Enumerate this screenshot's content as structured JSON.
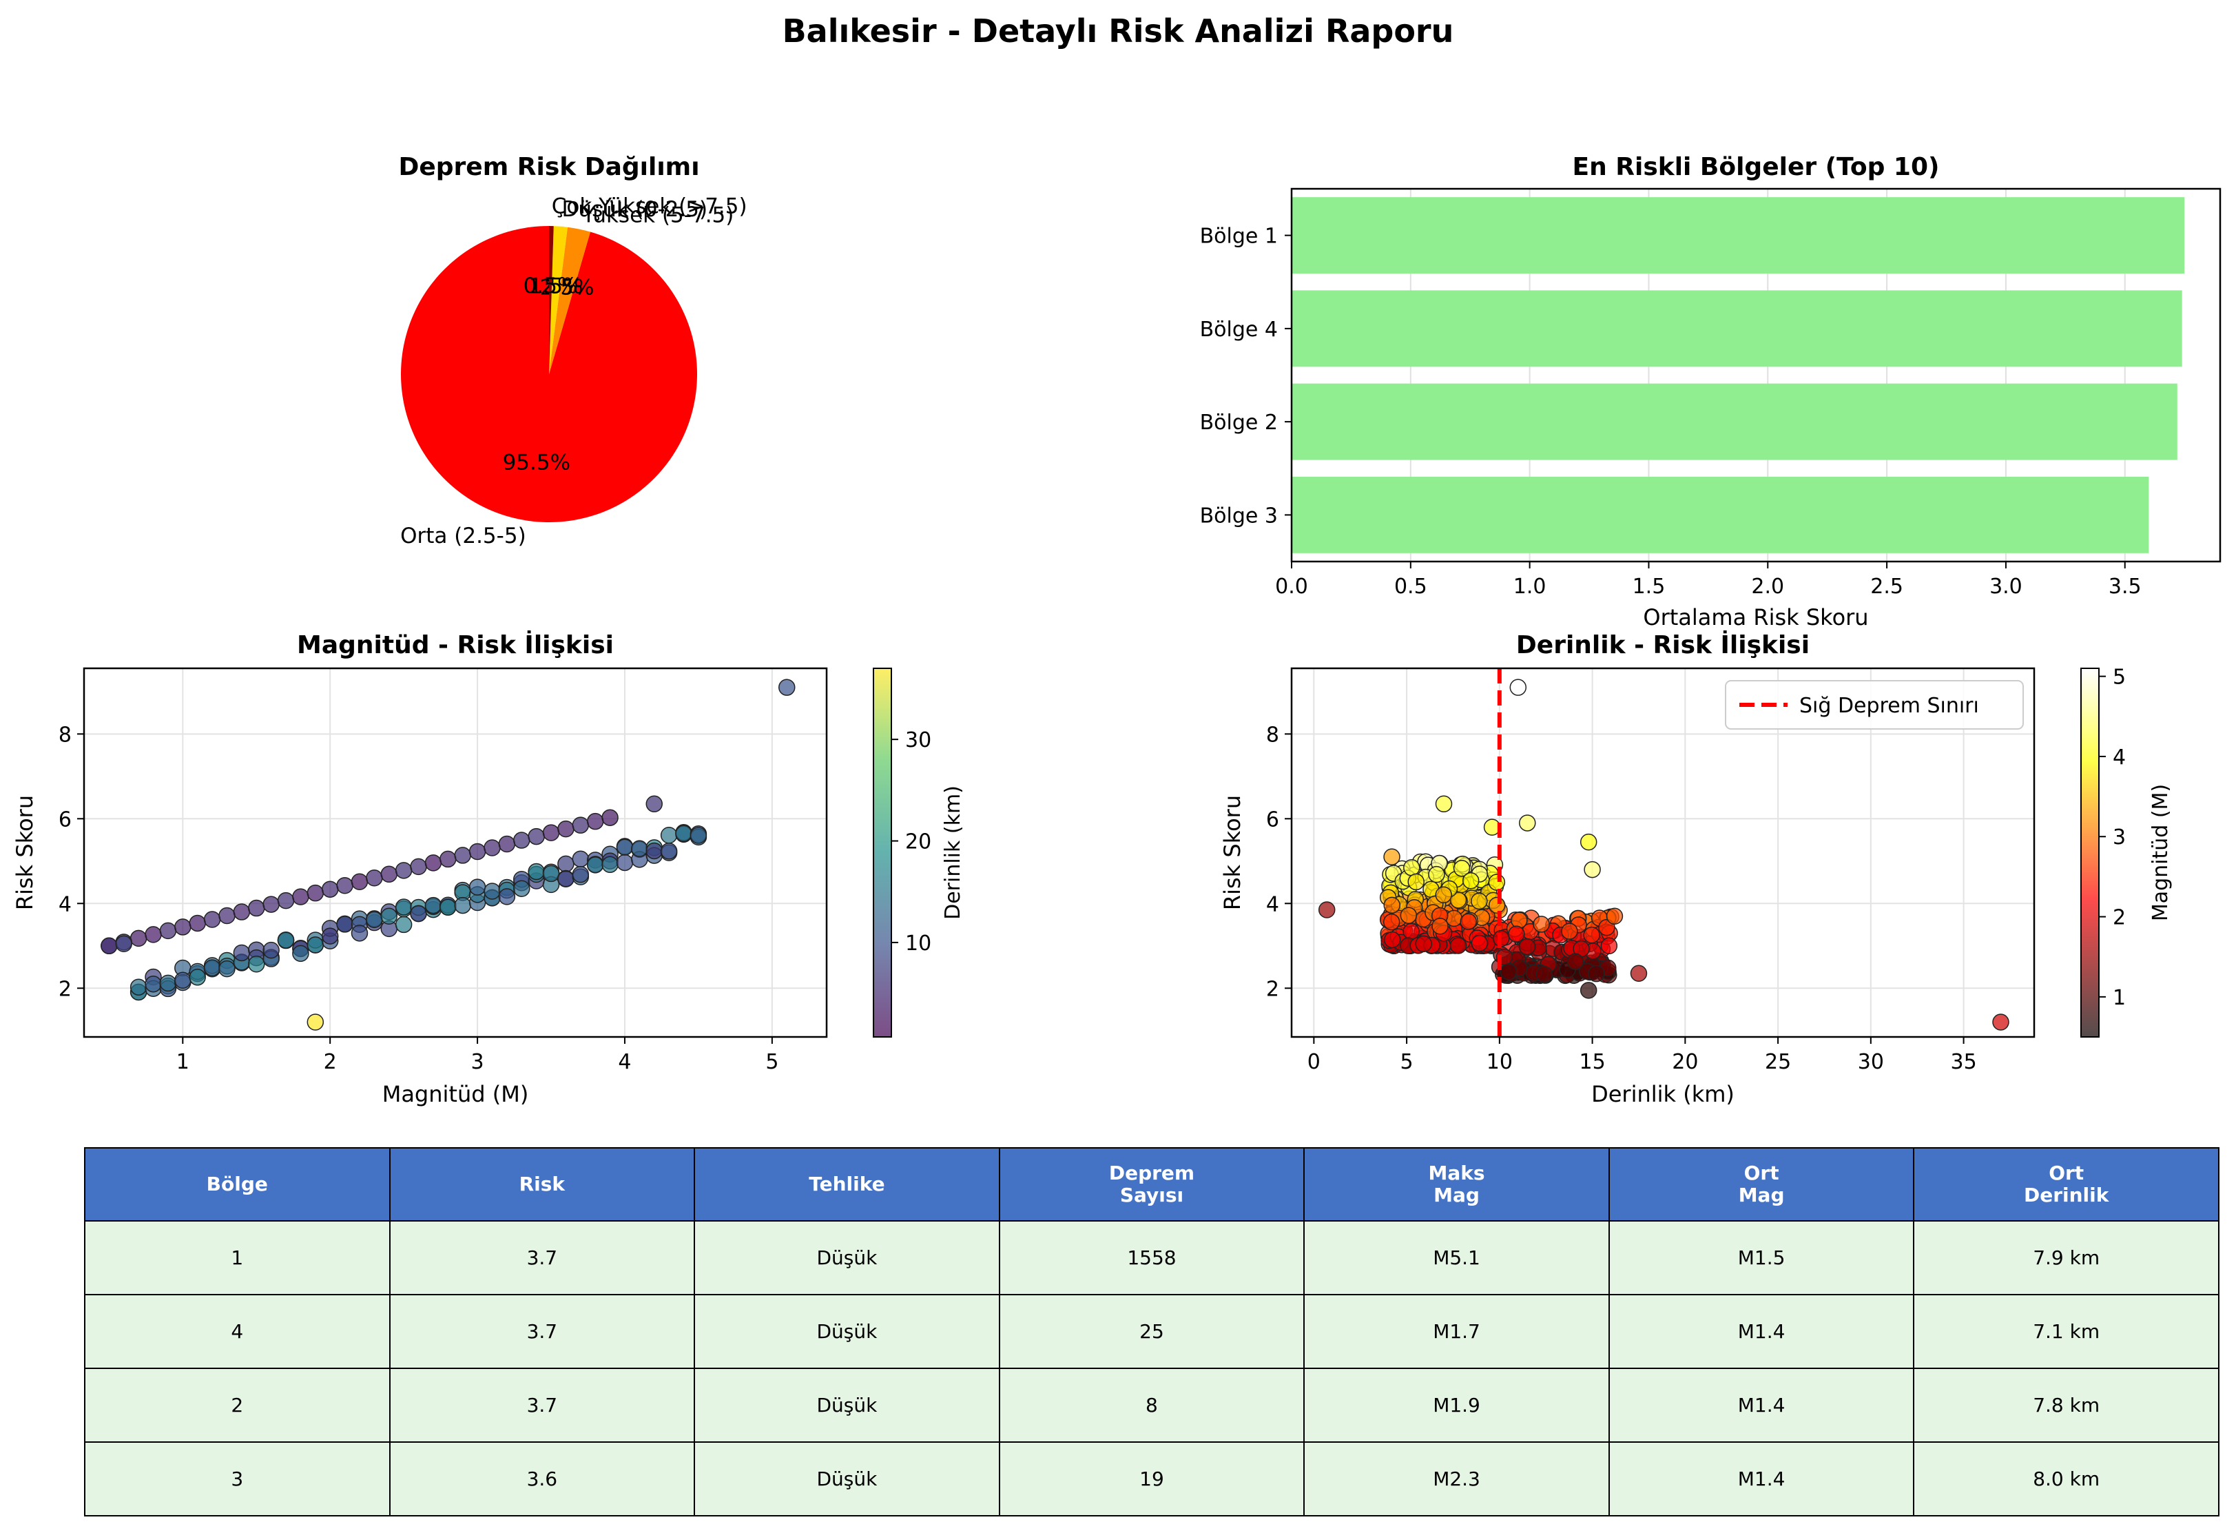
{
  "title": "Balıkesir - Detaylı Risk Analizi Raporu",
  "chart_data": [
    {
      "type": "pie",
      "title": "Deprem Risk Dağılımı",
      "slices": [
        {
          "label": "Orta (2.5-5)",
          "value": 95.5,
          "pct_label": "95.5%",
          "color": "#ff0000"
        },
        {
          "label": "Yüksek (5-7.5)",
          "value": 2.5,
          "pct_label": "2.5%",
          "color": "#ff8c00"
        },
        {
          "label": "Düşük (0-2.5)",
          "value": 1.5,
          "pct_label": "1.5%",
          "color": "#ffd700"
        },
        {
          "label": "Çok Yüksek (>7.5)",
          "value": 0.5,
          "pct_label": "0.5%",
          "color": "#8b0000"
        }
      ]
    },
    {
      "type": "bar",
      "orientation": "horizontal",
      "title": "En Riskli Bölgeler (Top 10)",
      "categories": [
        "Bölge 1",
        "Bölge 4",
        "Bölge 2",
        "Bölge 3"
      ],
      "values": [
        3.75,
        3.74,
        3.72,
        3.6
      ],
      "xlabel": "Ortalama Risk Skoru",
      "xlim": [
        0,
        3.9
      ],
      "xticks": [
        "0.0",
        "0.5",
        "1.0",
        "1.5",
        "2.0",
        "2.5",
        "3.0",
        "3.5"
      ],
      "color": "#90ee90",
      "grid": true
    },
    {
      "type": "scatter",
      "title": "Magnitüd - Risk İlişkisi",
      "xlabel": "Magnitüd (M)",
      "ylabel": "Risk Skoru",
      "xlim": [
        0.33,
        5.37
      ],
      "ylim": [
        0.85,
        9.55
      ],
      "xticks": [
        "1",
        "2",
        "3",
        "4",
        "5"
      ],
      "yticks": [
        "2",
        "4",
        "6",
        "8"
      ],
      "colorbar": {
        "label": "Derinlik (km)",
        "range": [
          0.7,
          37
        ],
        "ticks": [
          "10",
          "20",
          "30"
        ],
        "colormap": "viridis"
      },
      "series": [
        {
          "trend": "shallow",
          "x_range": [
            0.5,
            3.9
          ],
          "y_at_min": 3.0,
          "slope": 0.89,
          "z": 2
        },
        {
          "trend": "deep",
          "x_range": [
            0.7,
            4.5
          ],
          "y_at_min": 2.0,
          "slope": 0.95,
          "z": 12
        }
      ],
      "extra_points": [
        {
          "x": 5.1,
          "y": 9.1,
          "z": 10
        },
        {
          "x": 1.9,
          "y": 1.2,
          "z": 37
        },
        {
          "x": 4.2,
          "y": 6.35,
          "z": 6
        },
        {
          "x": 0.5,
          "y": 3.0,
          "z": 6
        },
        {
          "x": 0.6,
          "y": 3.05,
          "z": 8
        }
      ],
      "grid": true
    },
    {
      "type": "scatter",
      "title": "Derinlik - Risk İlişkisi",
      "xlabel": "Derinlik (km)",
      "ylabel": "Risk Skoru",
      "xlim": [
        -1.2,
        38.8
      ],
      "ylim": [
        0.85,
        9.55
      ],
      "xticks": [
        "0",
        "5",
        "10",
        "15",
        "20",
        "25",
        "30",
        "35"
      ],
      "yticks": [
        "2",
        "4",
        "6",
        "8"
      ],
      "vline": {
        "x": 10,
        "label": "Sığ Deprem Sınırı",
        "color": "#ff0000"
      },
      "colorbar": {
        "label": "Magnitüd (M)",
        "range": [
          0.5,
          5.1
        ],
        "ticks": [
          "1",
          "2",
          "3",
          "4",
          "5"
        ],
        "colormap": "hot"
      },
      "clusters": [
        {
          "x_range": [
            4.0,
            10.0
          ],
          "y_range": [
            3.0,
            5.0
          ],
          "count": 300
        },
        {
          "x_range": [
            10.0,
            16.0
          ],
          "y_range": [
            2.3,
            3.7
          ],
          "count": 160
        }
      ],
      "extra_points": [
        {
          "x": 11,
          "y": 9.1,
          "m": 5.1
        },
        {
          "x": 0.7,
          "y": 3.85,
          "m": 1.5
        },
        {
          "x": 37,
          "y": 1.2,
          "m": 1.9
        },
        {
          "x": 7,
          "y": 6.35,
          "m": 4.2
        },
        {
          "x": 11.5,
          "y": 5.9,
          "m": 4.4
        },
        {
          "x": 14.8,
          "y": 5.45,
          "m": 4.0
        },
        {
          "x": 15,
          "y": 4.8,
          "m": 4.5
        },
        {
          "x": 4.2,
          "y": 5.1,
          "m": 3.3
        },
        {
          "x": 9.6,
          "y": 5.8,
          "m": 4.1
        },
        {
          "x": 17.5,
          "y": 2.35,
          "m": 1.6
        },
        {
          "x": 14.8,
          "y": 1.95,
          "m": 0.7
        },
        {
          "x": 16.2,
          "y": 3.7,
          "m": 2.8
        },
        {
          "x": 15.9,
          "y": 3.0,
          "m": 2.2
        }
      ],
      "grid": true
    }
  ],
  "table": {
    "headers": [
      [
        "Bölge"
      ],
      [
        "Risk"
      ],
      [
        "Tehlike"
      ],
      [
        "Deprem",
        "Sayısı"
      ],
      [
        "Maks",
        "Mag"
      ],
      [
        "Ort",
        "Mag"
      ],
      [
        "Ort",
        "Derinlik"
      ]
    ],
    "rows": [
      [
        "1",
        "3.7",
        "Düşük",
        "1558",
        "M5.1",
        "M1.5",
        "7.9 km"
      ],
      [
        "4",
        "3.7",
        "Düşük",
        "25",
        "M1.7",
        "M1.4",
        "7.1 km"
      ],
      [
        "2",
        "3.7",
        "Düşük",
        "8",
        "M1.9",
        "M1.4",
        "7.8 km"
      ],
      [
        "3",
        "3.6",
        "Düşük",
        "19",
        "M2.3",
        "M1.4",
        "8.0 km"
      ]
    ]
  }
}
